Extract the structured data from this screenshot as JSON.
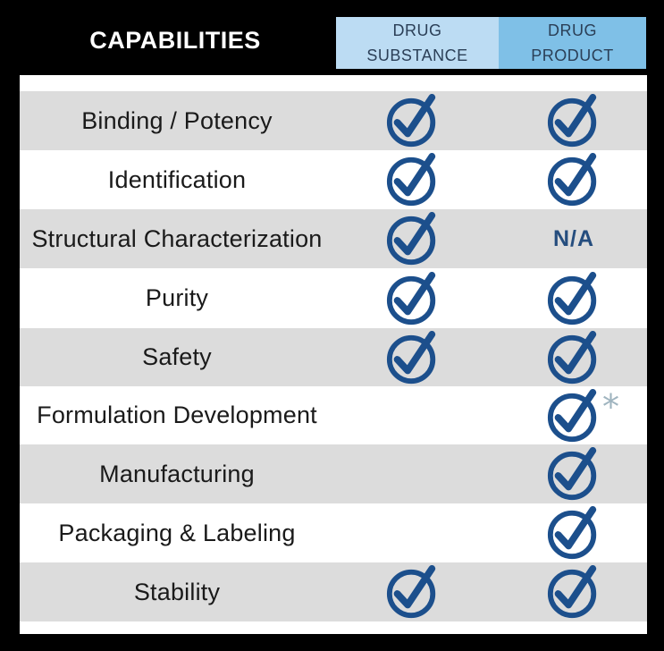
{
  "header": {
    "title": "CAPABILITIES",
    "columns": [
      {
        "line1": "DRUG",
        "line2": "SUBSTANCE"
      },
      {
        "line1": "DRUG",
        "line2": "PRODUCT"
      }
    ]
  },
  "colors": {
    "background": "#000000",
    "substance_header": "#bcdcf3",
    "product_header": "#7fc0e7",
    "row_shade": "#dcdcdc",
    "check": "#1c4f8c"
  },
  "rows": [
    {
      "label": "Binding / Potency",
      "drug_substance": "check-icon",
      "drug_product": "check-icon"
    },
    {
      "label": "Identification",
      "drug_substance": "check-icon",
      "drug_product": "check-icon"
    },
    {
      "label": "Structural Characterization",
      "drug_substance": "check-icon",
      "drug_product": "N/A"
    },
    {
      "label": "Purity",
      "drug_substance": "check-icon",
      "drug_product": "check-icon"
    },
    {
      "label": "Safety",
      "drug_substance": "check-icon",
      "drug_product": "check-icon"
    },
    {
      "label": "Formulation Development",
      "drug_substance": "",
      "drug_product": "check-icon",
      "drug_product_note": "*"
    },
    {
      "label": "Manufacturing",
      "drug_substance": "",
      "drug_product": "check-icon"
    },
    {
      "label": "Packaging & Labeling",
      "drug_substance": "",
      "drug_product": "check-icon"
    },
    {
      "label": "Stability",
      "drug_substance": "check-icon",
      "drug_product": "check-icon"
    }
  ]
}
